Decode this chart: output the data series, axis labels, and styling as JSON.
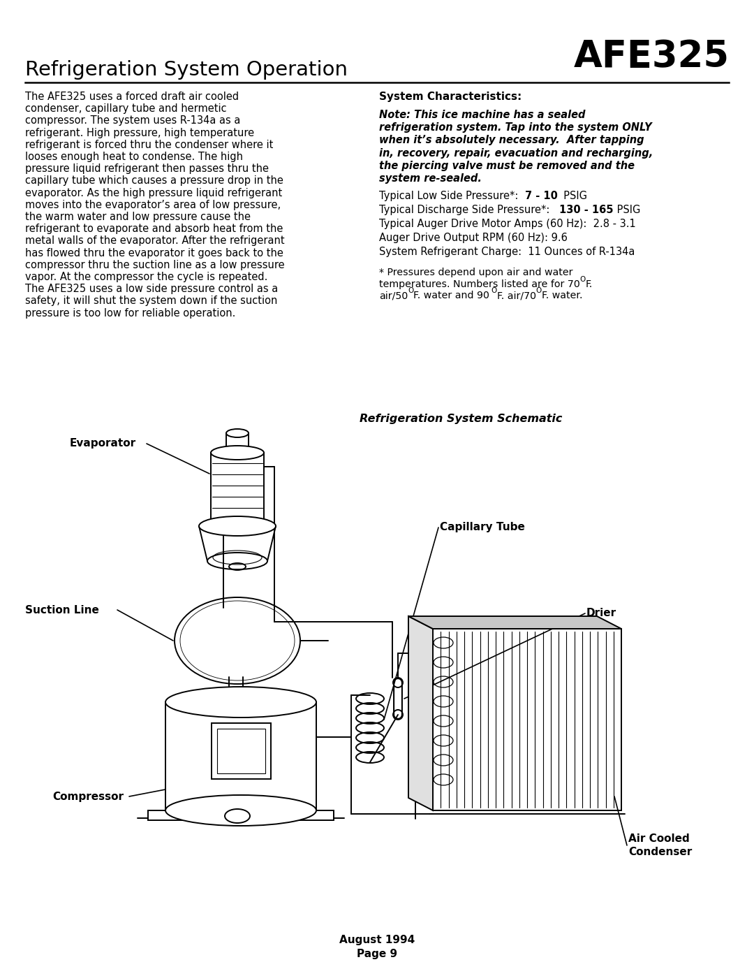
{
  "title": "AFE325",
  "section_title": "Refrigeration System Operation",
  "left_body_lines": [
    "The AFE325 uses a forced draft air cooled",
    "condenser, capillary tube and hermetic",
    "compressor. The system uses R-134a as a",
    "refrigerant. High pressure, high temperature",
    "refrigerant is forced thru the condenser where it",
    "looses enough heat to condense. The high",
    "pressure liquid refrigerant then passes thru the",
    "capillary tube which causes a pressure drop in the",
    "evaporator. As the high pressure liquid refrigerant",
    "moves into the evaporator’s area of low pressure,",
    "the warm water and low pressure cause the",
    "refrigerant to evaporate and absorb heat from the",
    "metal walls of the evaporator. After the refrigerant",
    "has flowed thru the evaporator it goes back to the",
    "compressor thru the suction line as a low pressure",
    "vapor. At the compressor the cycle is repeated.",
    "The AFE325 uses a low side pressure control as a",
    "safety, it will shut the system down if the suction",
    "pressure is too low for reliable operation."
  ],
  "right_header": "System Characteristics:",
  "note_lines": [
    "Note: This ice machine has a sealed",
    "refrigeration system. Tap into the system ONLY",
    "when it’s absolutely necessary.  After tapping",
    "in, recovery, repair, evacuation and recharging,",
    "the piercing valve must be removed and the",
    "system re-sealed."
  ],
  "spec_lines": [
    {
      "pre": "Typical Low Side Pressure*:  ",
      "bold": "7 - 10",
      "post": "  PSIG"
    },
    {
      "pre": "Typical Discharge Side Pressure*:   ",
      "bold": "130 - 165",
      "post": " PSIG"
    },
    {
      "pre": "Typical Auger Drive Motor Amps (60 Hz):  2.8 - 3.1",
      "bold": "",
      "post": ""
    },
    {
      "pre": "Auger Drive Output RPM (60 Hz): 9.6",
      "bold": "",
      "post": ""
    },
    {
      "pre": "System Refrigerant Charge:  11 Ounces of R-134a",
      "bold": "",
      "post": ""
    }
  ],
  "schematic_title": "Refrigeration System Schematic",
  "label_evaporator": "Evaporator",
  "label_suction": "Suction Line",
  "label_compressor": "Compressor",
  "label_cap_tube": "Capillary Tube",
  "label_drier": "Drier",
  "label_condenser": "Air Cooled\nCondenser",
  "footer1": "August 1994",
  "footer2": "Page 9",
  "bg_color": "#ffffff",
  "text_color": "#000000"
}
